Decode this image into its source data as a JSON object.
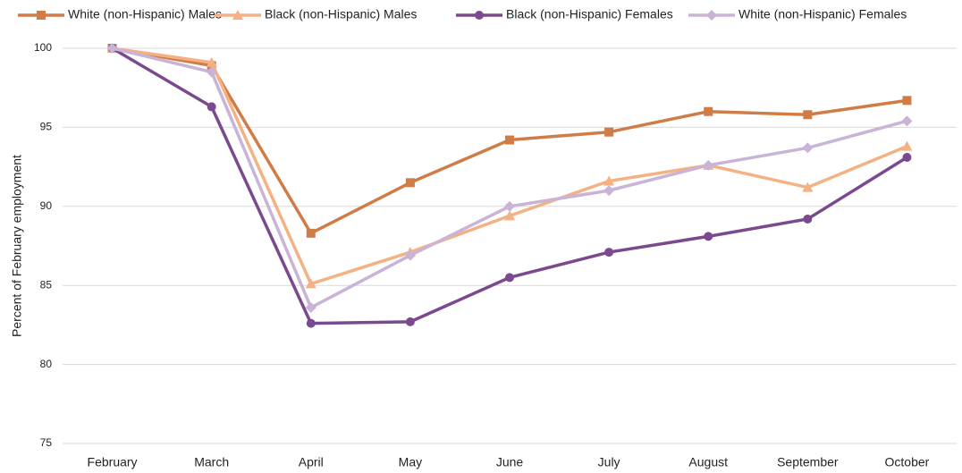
{
  "chart_data": {
    "type": "line",
    "y_label": "Percent of February employment",
    "categories": [
      "February",
      "March",
      "April",
      "May",
      "June",
      "July",
      "August",
      "September",
      "October"
    ],
    "series": [
      {
        "name": "White (non-Hispanic) Males",
        "color": "#d07c47",
        "marker": "square",
        "values": [
          100,
          98.9,
          88.3,
          91.5,
          94.2,
          94.7,
          96.0,
          95.8,
          96.7
        ]
      },
      {
        "name": "Black (non-Hispanic) Males",
        "color": "#f4b183",
        "marker": "triangle",
        "values": [
          100,
          99.1,
          85.1,
          87.1,
          89.4,
          91.6,
          92.6,
          91.2,
          93.8
        ]
      },
      {
        "name": "Black (non-Hispanic) Females",
        "color": "#7b4a8e",
        "marker": "circle",
        "values": [
          100,
          96.3,
          82.6,
          82.7,
          85.5,
          87.1,
          88.1,
          89.2,
          93.1
        ]
      },
      {
        "name": "White (non-Hispanic) Females",
        "color": "#c9b3d6",
        "marker": "diamond",
        "values": [
          100,
          98.5,
          83.6,
          86.9,
          90.0,
          91.0,
          92.6,
          93.7,
          95.4
        ]
      }
    ],
    "ylim": [
      75,
      100
    ],
    "yticks": [
      75,
      80,
      85,
      90,
      95,
      100
    ],
    "grid": true,
    "legend": "top"
  }
}
